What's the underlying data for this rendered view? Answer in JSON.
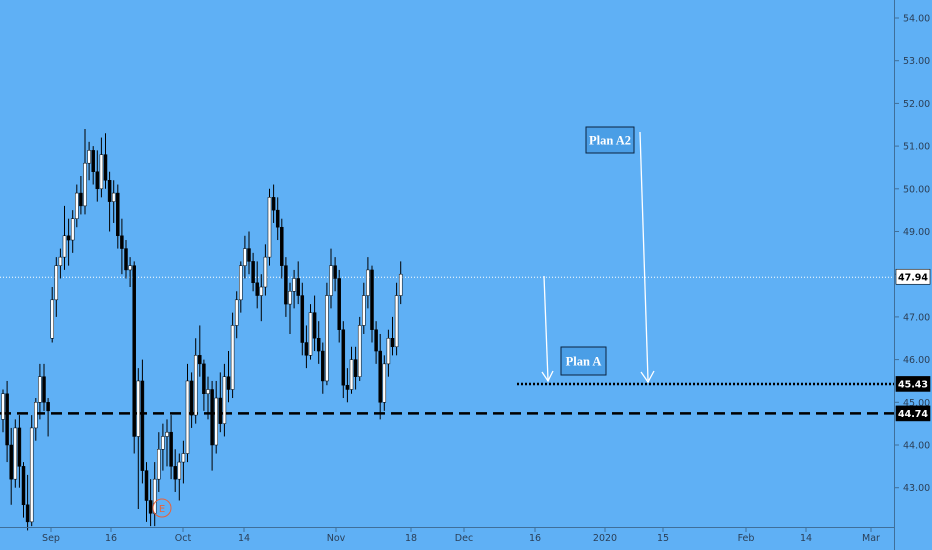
{
  "chart_data": {
    "type": "candlestick",
    "y_axis": {
      "ticks": [
        "54.00",
        "53.00",
        "52.00",
        "51.00",
        "50.00",
        "49.00",
        "48.00",
        "47.00",
        "46.00",
        "45.00",
        "44.00",
        "43.00"
      ],
      "range": [
        42.05,
        54.4
      ],
      "side": "right"
    },
    "x_axis": {
      "ticks": [
        "Sep",
        "16",
        "Oct",
        "14",
        "Nov",
        "18",
        "Dec",
        "16",
        "2020",
        "15",
        "Feb",
        "14",
        "Mar"
      ]
    },
    "price_labels": [
      {
        "text": "47.94",
        "value": 47.94,
        "style": "current-price"
      },
      {
        "text": "45.43",
        "value": 45.43,
        "style": "level"
      },
      {
        "text": "44.74",
        "value": 44.74,
        "style": "level"
      }
    ],
    "horizontal_lines": [
      {
        "name": "current-price-line",
        "value": 47.94,
        "style": "dotted",
        "color": "#ffffff"
      },
      {
        "name": "plan-a-target-line",
        "value": 45.43,
        "style": "dotted",
        "color": "#000000"
      },
      {
        "name": "support-line",
        "value": 44.74,
        "style": "dashed",
        "color": "#000000"
      }
    ],
    "annotations": [
      {
        "name": "plan-a",
        "text": "Plan A"
      },
      {
        "name": "plan-a2",
        "text": "Plan A2"
      }
    ],
    "event_marker": {
      "text": "E"
    },
    "grid": false,
    "candle_colors": {
      "up": "#ffffff",
      "down": "#000000",
      "wick": "#000000"
    },
    "candles": [
      [
        44.6,
        45.3,
        44.3,
        45.2
      ],
      [
        45.2,
        45.5,
        43.6,
        44.0
      ],
      [
        44.0,
        44.4,
        42.6,
        43.2
      ],
      [
        43.2,
        44.6,
        43.0,
        44.4
      ],
      [
        44.4,
        44.7,
        43.0,
        43.5
      ],
      [
        43.5,
        43.6,
        42.3,
        42.6
      ],
      [
        42.6,
        43.3,
        42.0,
        42.2
      ],
      [
        42.2,
        44.7,
        42.1,
        44.4
      ],
      [
        44.4,
        45.1,
        44.1,
        45.0
      ],
      [
        45.0,
        45.9,
        44.6,
        45.6
      ],
      [
        45.6,
        45.9,
        44.8,
        45.0
      ],
      [
        45.0,
        45.1,
        44.2,
        44.8
      ],
      [
        46.5,
        47.7,
        46.4,
        47.4
      ],
      [
        47.4,
        48.4,
        47.0,
        48.2
      ],
      [
        48.2,
        48.6,
        47.9,
        48.4
      ],
      [
        48.4,
        49.6,
        48.1,
        48.9
      ],
      [
        48.9,
        49.3,
        48.2,
        48.8
      ],
      [
        48.8,
        49.5,
        48.5,
        49.3
      ],
      [
        49.3,
        50.1,
        49.1,
        49.9
      ],
      [
        49.9,
        50.3,
        49.4,
        49.6
      ],
      [
        49.6,
        51.4,
        49.4,
        50.6
      ],
      [
        50.6,
        51.1,
        50.2,
        50.9
      ],
      [
        50.9,
        51.0,
        50.1,
        50.4
      ],
      [
        50.4,
        50.9,
        49.7,
        50.0
      ],
      [
        50.0,
        51.2,
        49.8,
        50.8
      ],
      [
        50.8,
        51.3,
        50.0,
        50.2
      ],
      [
        50.2,
        50.4,
        49.0,
        49.7
      ],
      [
        49.7,
        50.2,
        49.2,
        49.9
      ],
      [
        49.9,
        50.1,
        48.6,
        48.9
      ],
      [
        48.9,
        49.3,
        48.0,
        48.6
      ],
      [
        48.6,
        48.8,
        47.9,
        48.1
      ],
      [
        48.1,
        48.4,
        47.7,
        48.2
      ],
      [
        48.2,
        48.3,
        43.8,
        44.2
      ],
      [
        44.2,
        45.8,
        42.5,
        45.5
      ],
      [
        45.5,
        46.0,
        43.1,
        43.4
      ],
      [
        43.4,
        43.6,
        42.2,
        42.7
      ],
      [
        42.7,
        43.2,
        42.1,
        42.4
      ],
      [
        42.4,
        43.6,
        42.1,
        43.2
      ],
      [
        43.2,
        44.3,
        42.9,
        43.9
      ],
      [
        43.9,
        44.5,
        43.4,
        44.2
      ],
      [
        44.2,
        44.6,
        43.5,
        44.3
      ],
      [
        44.3,
        44.7,
        43.2,
        43.5
      ],
      [
        43.5,
        43.9,
        42.9,
        43.2
      ],
      [
        43.2,
        43.8,
        42.7,
        43.6
      ],
      [
        43.6,
        44.1,
        43.1,
        43.8
      ],
      [
        43.8,
        45.9,
        43.6,
        45.5
      ],
      [
        45.5,
        45.7,
        44.4,
        44.7
      ],
      [
        44.7,
        46.5,
        44.5,
        46.1
      ],
      [
        46.1,
        46.8,
        45.6,
        45.9
      ],
      [
        45.9,
        46.0,
        44.8,
        45.2
      ],
      [
        45.2,
        45.6,
        44.6,
        45.3
      ],
      [
        45.3,
        45.5,
        43.4,
        44.0
      ],
      [
        44.0,
        45.5,
        43.8,
        45.1
      ],
      [
        45.1,
        45.7,
        44.3,
        44.5
      ],
      [
        44.5,
        45.9,
        44.2,
        45.6
      ],
      [
        45.6,
        46.2,
        45.0,
        45.3
      ],
      [
        45.3,
        47.1,
        45.1,
        46.8
      ],
      [
        46.8,
        47.6,
        46.5,
        47.4
      ],
      [
        47.4,
        48.3,
        47.1,
        48.2
      ],
      [
        48.2,
        48.9,
        47.9,
        48.6
      ],
      [
        48.6,
        49.0,
        48.0,
        48.3
      ],
      [
        48.3,
        48.5,
        47.6,
        47.8
      ],
      [
        47.8,
        48.3,
        47.2,
        47.5
      ],
      [
        47.5,
        48.0,
        46.9,
        47.7
      ],
      [
        47.7,
        48.7,
        47.5,
        48.4
      ],
      [
        48.4,
        50.0,
        48.2,
        49.8
      ],
      [
        49.8,
        50.1,
        49.2,
        49.5
      ],
      [
        49.5,
        49.8,
        48.8,
        49.1
      ],
      [
        49.1,
        49.3,
        47.9,
        48.2
      ],
      [
        48.2,
        48.4,
        47.0,
        47.3
      ],
      [
        47.3,
        47.8,
        46.6,
        47.6
      ],
      [
        47.6,
        48.1,
        47.2,
        47.9
      ],
      [
        47.9,
        48.3,
        47.3,
        47.5
      ],
      [
        47.5,
        47.8,
        46.1,
        46.4
      ],
      [
        46.4,
        46.8,
        45.8,
        46.1
      ],
      [
        46.1,
        47.3,
        46.0,
        47.1
      ],
      [
        47.1,
        47.5,
        46.2,
        46.5
      ],
      [
        46.5,
        46.9,
        45.9,
        46.2
      ],
      [
        46.2,
        46.4,
        45.2,
        45.5
      ],
      [
        45.5,
        47.8,
        45.4,
        47.5
      ],
      [
        47.5,
        48.6,
        47.2,
        48.2
      ],
      [
        48.2,
        48.4,
        47.6,
        47.9
      ],
      [
        47.9,
        48.1,
        46.4,
        46.7
      ],
      [
        46.7,
        46.9,
        45.1,
        45.4
      ],
      [
        45.4,
        45.8,
        45.0,
        45.3
      ],
      [
        45.3,
        46.3,
        45.2,
        46.0
      ],
      [
        46.0,
        46.3,
        45.3,
        45.6
      ],
      [
        45.6,
        47.0,
        45.5,
        46.8
      ],
      [
        46.8,
        47.8,
        46.6,
        47.5
      ],
      [
        47.5,
        48.4,
        47.2,
        48.1
      ],
      [
        48.1,
        48.2,
        46.4,
        46.7
      ],
      [
        46.7,
        46.9,
        45.9,
        46.2
      ],
      [
        46.2,
        46.6,
        44.6,
        45.0
      ],
      [
        45.0,
        46.1,
        44.8,
        45.9
      ],
      [
        45.9,
        46.7,
        45.6,
        46.5
      ],
      [
        46.5,
        47.0,
        46.1,
        46.3
      ],
      [
        46.3,
        47.8,
        46.1,
        47.5
      ],
      [
        47.5,
        48.3,
        47.3,
        48.0
      ]
    ]
  }
}
